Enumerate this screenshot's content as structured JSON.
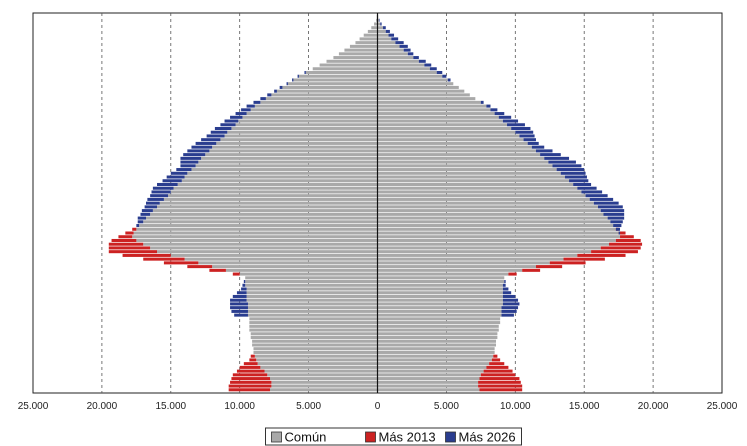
{
  "chart_data": {
    "type": "bar",
    "orientation": "horizontal",
    "layout": "population-pyramid",
    "xlim": [
      -25000,
      25000
    ],
    "xticks": [
      -25000,
      -20000,
      -15000,
      -10000,
      -5000,
      0,
      5000,
      10000,
      15000,
      20000,
      25000
    ],
    "xtick_labels": [
      "25.000",
      "20.000",
      "15.000",
      "10.000",
      "5.000",
      "0",
      "5.000",
      "10.000",
      "15.000",
      "20.000",
      "25.000"
    ],
    "grid": "vertical dashed",
    "legend_position": "bottom-center",
    "age_groups": 101,
    "series": [
      {
        "name": "Común",
        "color": "#a9a9a9",
        "description": "overlap of both years",
        "left": [
          7800,
          7700,
          7700,
          7800,
          8000,
          8200,
          8500,
          8700,
          8800,
          8900,
          9000,
          9000,
          9100,
          9100,
          9200,
          9200,
          9300,
          9300,
          9300,
          9300,
          9400,
          9400,
          9400,
          9400,
          9500,
          9500,
          9500,
          9500,
          9600,
          9600,
          9600,
          10000,
          11000,
          12000,
          13000,
          14000,
          15000,
          16000,
          16500,
          17000,
          17500,
          17800,
          17700,
          17500,
          17300,
          17000,
          16800,
          16500,
          16300,
          16000,
          15800,
          15500,
          15200,
          15000,
          14800,
          14500,
          14200,
          14000,
          13800,
          13500,
          13200,
          13000,
          12800,
          12500,
          12200,
          12000,
          11700,
          11400,
          11100,
          10900,
          10600,
          10300,
          10100,
          9800,
          9500,
          9200,
          8900,
          8500,
          8100,
          7700,
          7300,
          6900,
          6500,
          6100,
          5700,
          5200,
          4700,
          4200,
          3700,
          3200,
          2800,
          2400,
          2000,
          1600,
          1300,
          1000,
          700,
          450,
          250,
          100,
          50
        ],
        "right": [
          7400,
          7300,
          7300,
          7400,
          7500,
          7700,
          7900,
          8100,
          8300,
          8400,
          8500,
          8500,
          8600,
          8600,
          8700,
          8700,
          8800,
          8800,
          8900,
          8900,
          9000,
          9000,
          9000,
          9100,
          9100,
          9100,
          9100,
          9100,
          9100,
          9200,
          9200,
          9500,
          10500,
          11500,
          12500,
          13500,
          14500,
          15500,
          16200,
          16800,
          17300,
          17600,
          17500,
          17300,
          17100,
          16900,
          16700,
          16400,
          16200,
          16000,
          15700,
          15400,
          15100,
          14800,
          14500,
          14200,
          13900,
          13600,
          13300,
          13000,
          12700,
          12400,
          12100,
          11800,
          11500,
          11200,
          10900,
          10600,
          10300,
          10000,
          9700,
          9400,
          9100,
          8800,
          8500,
          8200,
          7900,
          7500,
          7100,
          6700,
          6300,
          5900,
          5500,
          5100,
          4700,
          4300,
          3800,
          3400,
          3000,
          2600,
          2200,
          1900,
          1600,
          1300,
          1000,
          800,
          600,
          400,
          200,
          100,
          50
        ]
      },
      {
        "name": "Más 2013",
        "color": "#cc2222",
        "description": "excess 2013",
        "left": [
          3000,
          3100,
          3000,
          2800,
          2500,
          2000,
          1500,
          1000,
          500,
          300,
          0,
          0,
          0,
          0,
          0,
          0,
          0,
          0,
          0,
          0,
          0,
          0,
          0,
          0,
          0,
          0,
          0,
          0,
          0,
          0,
          0,
          500,
          1200,
          1800,
          2500,
          3000,
          3500,
          3500,
          3000,
          2500,
          1800,
          1000,
          600,
          300,
          0,
          0,
          0,
          0,
          0,
          0,
          0,
          0,
          0,
          0,
          0,
          0,
          0,
          0,
          0,
          0,
          0,
          0,
          0,
          0,
          0,
          0,
          0,
          0,
          0,
          0,
          0,
          0,
          0,
          0,
          0,
          0,
          0,
          0,
          0,
          0,
          0,
          0,
          0,
          0,
          0,
          0,
          0,
          0,
          0,
          0,
          0,
          0,
          0,
          0,
          0,
          0,
          0,
          0,
          0,
          0,
          0
        ],
        "right": [
          3100,
          3200,
          3100,
          2900,
          2500,
          2100,
          1600,
          1100,
          600,
          300,
          0,
          0,
          0,
          0,
          0,
          0,
          0,
          0,
          0,
          0,
          0,
          0,
          0,
          0,
          0,
          0,
          0,
          0,
          0,
          0,
          0,
          600,
          1300,
          1900,
          2600,
          3000,
          3500,
          3400,
          2900,
          2400,
          1800,
          1000,
          500,
          200,
          0,
          0,
          0,
          0,
          0,
          0,
          0,
          0,
          0,
          0,
          0,
          0,
          0,
          0,
          0,
          0,
          0,
          0,
          0,
          0,
          0,
          0,
          0,
          0,
          0,
          0,
          0,
          0,
          0,
          0,
          0,
          0,
          0,
          0,
          0,
          0,
          0,
          0,
          0,
          0,
          0,
          0,
          0,
          0,
          0,
          0,
          0,
          0,
          0,
          0,
          0,
          0,
          0,
          0,
          0,
          0,
          0
        ]
      },
      {
        "name": "Más 2026",
        "color": "#2a3d8f",
        "description": "excess 2026",
        "left": [
          0,
          0,
          0,
          0,
          0,
          0,
          0,
          0,
          0,
          0,
          0,
          0,
          0,
          0,
          0,
          0,
          0,
          0,
          0,
          0,
          1000,
          1200,
          1300,
          1300,
          1200,
          1000,
          700,
          400,
          200,
          100,
          0,
          0,
          0,
          0,
          0,
          0,
          0,
          0,
          0,
          0,
          0,
          0,
          0,
          0,
          200,
          400,
          600,
          700,
          800,
          900,
          1000,
          1200,
          1300,
          1400,
          1500,
          1500,
          1400,
          1300,
          1200,
          1100,
          1100,
          1300,
          1500,
          1600,
          1600,
          1500,
          1500,
          1400,
          1300,
          1200,
          1200,
          1100,
          1000,
          900,
          800,
          700,
          600,
          500,
          400,
          300,
          200,
          200,
          100,
          100,
          100,
          100,
          0,
          0,
          0,
          0,
          0,
          0,
          0,
          0,
          0,
          0,
          0,
          0,
          0,
          0,
          0
        ],
        "right": [
          0,
          0,
          0,
          0,
          0,
          0,
          0,
          0,
          0,
          0,
          0,
          0,
          0,
          0,
          0,
          0,
          0,
          0,
          0,
          0,
          900,
          1100,
          1200,
          1200,
          1100,
          900,
          600,
          400,
          200,
          100,
          0,
          0,
          0,
          0,
          0,
          0,
          0,
          0,
          0,
          0,
          0,
          0,
          100,
          300,
          600,
          900,
          1200,
          1500,
          1700,
          1800,
          1800,
          1700,
          1600,
          1500,
          1400,
          1300,
          1400,
          1600,
          1800,
          2000,
          2100,
          2000,
          1800,
          1500,
          1200,
          900,
          800,
          900,
          1100,
          1300,
          1400,
          1300,
          1100,
          900,
          700,
          500,
          300,
          200,
          0,
          0,
          0,
          0,
          0,
          200,
          300,
          400,
          500,
          500,
          500,
          400,
          400,
          500,
          600,
          600,
          500,
          400,
          300,
          200,
          100,
          50,
          0
        ]
      }
    ]
  },
  "legend": {
    "items": [
      {
        "label": "Común",
        "color": "#a9a9a9"
      },
      {
        "label": "Más 2013",
        "color": "#cc2222"
      },
      {
        "label": "Más 2026",
        "color": "#2a3d8f"
      }
    ]
  }
}
